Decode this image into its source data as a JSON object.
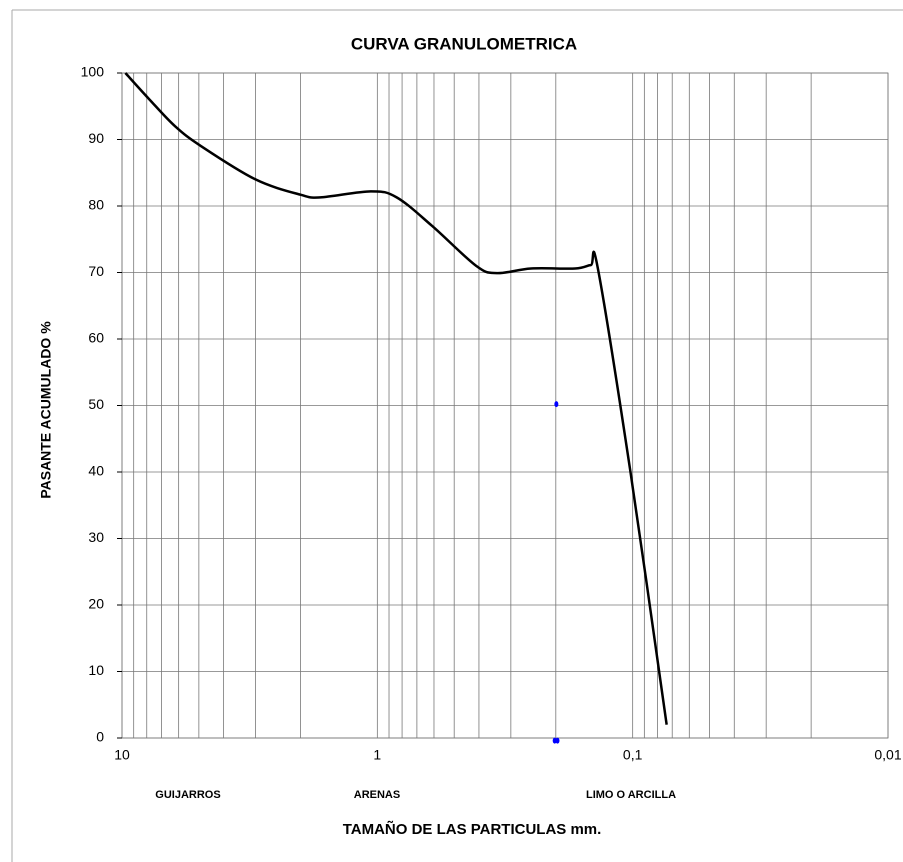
{
  "chart_data": {
    "type": "line",
    "title": "CURVA GRANULOMETRICA",
    "ylabel": "PASANTE ACUMULADO %",
    "xlabel": "TAMAÑO DE LAS PARTICULAS mm.",
    "annotations": [
      "GUIJARROS",
      "ARENAS",
      "LIMO O ARCILLA"
    ],
    "xscale": "log",
    "xlim": [
      10,
      0.01
    ],
    "xticks": [
      10,
      1,
      {
        "value": 0.1,
        "label": "0,1"
      },
      {
        "value": 0.01,
        "label": "0,01"
      }
    ],
    "xminorticks": [
      9,
      8,
      7,
      6,
      5,
      4,
      3,
      2,
      0.9,
      0.8,
      0.7,
      0.6,
      0.5,
      0.4,
      0.3,
      0.2,
      0.09,
      0.08,
      0.07,
      0.06,
      0.05,
      0.04,
      0.03,
      0.02
    ],
    "ylim": [
      0,
      100
    ],
    "yticks": [
      0,
      10,
      20,
      30,
      40,
      50,
      60,
      70,
      80,
      90,
      100
    ],
    "grid": true,
    "series": [
      {
        "type": "line",
        "color": "#000000",
        "x": [
          9.7,
          7.8,
          6.2,
          4.9,
          3.0,
          2.0,
          1.67,
          1.06,
          0.84,
          0.61,
          0.41,
          0.34,
          0.25,
          0.168,
          0.146,
          0.137,
          0.102,
          0.0736
        ],
        "values": [
          100,
          96,
          92,
          89,
          84,
          81.7,
          81.3,
          82.2,
          81.3,
          77,
          71,
          69.9,
          70.6,
          70.6,
          71.1,
          70.7,
          40,
          2
        ]
      },
      {
        "type": "scatter",
        "color": "#0000ff",
        "x": [
          0.199,
          0.202,
          0.197
        ],
        "values": [
          50.2,
          -0.4,
          -0.4
        ]
      }
    ]
  }
}
